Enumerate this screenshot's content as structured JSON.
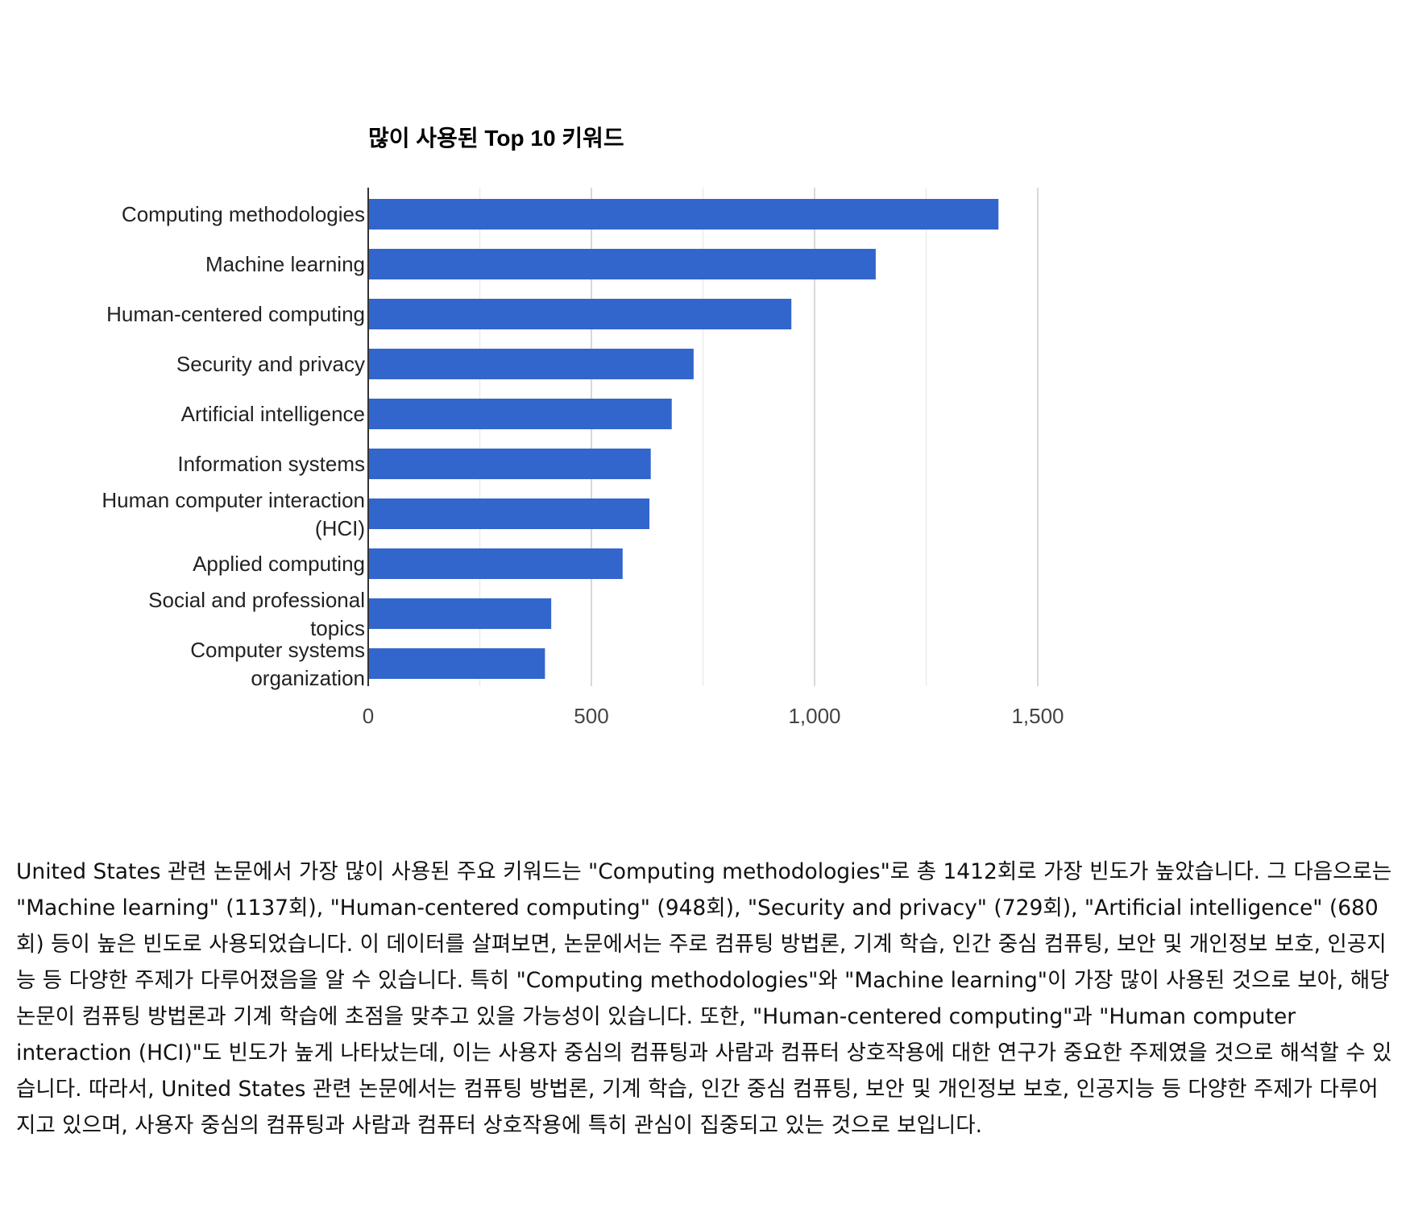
{
  "chart_data": {
    "type": "bar",
    "orientation": "horizontal",
    "title": "많이 사용된 Top 10 키워드",
    "categories": [
      "Computing methodologies",
      "Machine learning",
      "Human-centered computing",
      "Security and privacy",
      "Artificial intelligence",
      "Information systems",
      "Human computer interaction (HCI)",
      "Applied computing",
      "Social and professional topics",
      "Computer systems organization"
    ],
    "values": [
      1412,
      1137,
      948,
      729,
      680,
      633,
      630,
      570,
      410,
      396
    ],
    "xlim": [
      0,
      1500
    ],
    "xticks": [
      0,
      500,
      1000,
      1500
    ],
    "xtick_labels": [
      "0",
      "500",
      "1,000",
      "1,500"
    ],
    "grid": "vertical",
    "bar_color": "#3366cc"
  },
  "summary": {
    "text": "United States 관련 논문에서 가장 많이 사용된 주요 키워드는 \"Computing methodologies\"로 총 1412회로 가장 빈도가 높았습니다. 그 다음으로는 \"Machine learning\" (1137회), \"Human-centered computing\" (948회), \"Security and privacy\" (729회), \"Artificial intelligence\" (680회) 등이 높은 빈도로 사용되었습니다.  이 데이터를 살펴보면, 논문에서는 주로 컴퓨팅 방법론, 기계 학습, 인간 중심 컴퓨팅, 보안 및 개인정보 보호, 인공지능 등 다양한 주제가 다루어졌음을 알 수 있습니다. 특히 \"Computing methodologies\"와 \"Machine learning\"이 가장 많이 사용된 것으로 보아, 해당 논문이 컴퓨팅 방법론과 기계 학습에 초점을 맞추고 있을 가능성이 있습니다.  또한, \"Human-centered computing\"과 \"Human computer interaction (HCI)\"도 빈도가 높게 나타났는데, 이는 사용자 중심의 컴퓨팅과 사람과 컴퓨터 상호작용에 대한 연구가 중요한 주제였을 것으로 해석할 수 있습니다.  따라서, United States 관련 논문에서는 컴퓨팅 방법론, 기계 학습, 인간 중심 컴퓨팅, 보안 및 개인정보 보호, 인공지능 등 다양한 주제가 다루어지고 있으며, 사용자 중심의 컴퓨팅과 사람과 컴퓨터 상호작용에 특히 관심이 집중되고 있는 것으로 보입니다."
  }
}
